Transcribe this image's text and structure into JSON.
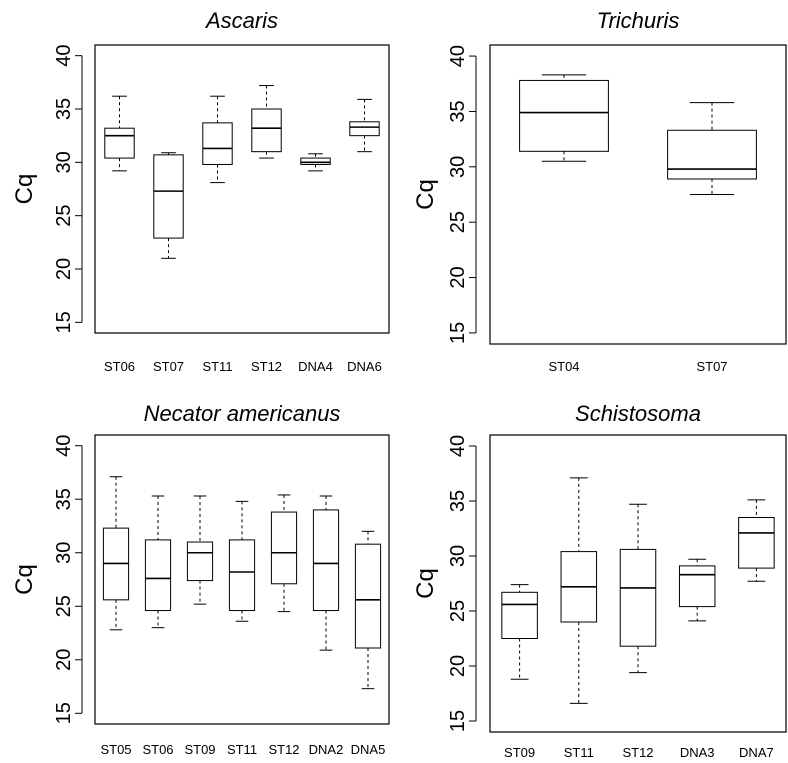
{
  "chart_data": [
    {
      "type": "box",
      "title": "Ascaris",
      "ylabel": "Cq",
      "xlabel": "",
      "ylim": [
        15,
        40
      ],
      "yticks": [
        15,
        20,
        25,
        30,
        35,
        40
      ],
      "grid": false,
      "categories": [
        "ST06",
        "ST07",
        "ST11",
        "ST12",
        "DNA4",
        "DNA6"
      ],
      "boxes": [
        {
          "min": 29.2,
          "q1": 30.4,
          "median": 32.5,
          "q3": 33.2,
          "max": 36.2
        },
        {
          "min": 21.0,
          "q1": 22.9,
          "median": 27.3,
          "q3": 30.7,
          "max": 30.9
        },
        {
          "min": 28.1,
          "q1": 29.8,
          "median": 31.3,
          "q3": 33.7,
          "max": 36.2
        },
        {
          "min": 30.4,
          "q1": 31.0,
          "median": 33.2,
          "q3": 35.0,
          "max": 37.2
        },
        {
          "min": 29.2,
          "q1": 29.8,
          "median": 30.0,
          "q3": 30.4,
          "max": 30.8
        },
        {
          "min": 31.0,
          "q1": 32.5,
          "median": 33.3,
          "q3": 33.8,
          "max": 35.9
        }
      ]
    },
    {
      "type": "box",
      "title": "Trichuris",
      "ylabel": "Cq",
      "xlabel": "",
      "ylim": [
        15,
        40
      ],
      "yticks": [
        15,
        20,
        25,
        30,
        35,
        40
      ],
      "grid": false,
      "categories": [
        "ST04",
        "ST07"
      ],
      "boxes": [
        {
          "min": 30.5,
          "q1": 31.4,
          "median": 34.9,
          "q3": 37.8,
          "max": 38.3
        },
        {
          "min": 27.5,
          "q1": 28.9,
          "median": 29.8,
          "q3": 33.3,
          "max": 35.8
        }
      ]
    },
    {
      "type": "box",
      "title": "Necator americanus",
      "ylabel": "Cq",
      "xlabel": "",
      "ylim": [
        15,
        40
      ],
      "yticks": [
        15,
        20,
        25,
        30,
        35,
        40
      ],
      "grid": false,
      "categories": [
        "ST05",
        "ST06",
        "ST09",
        "ST11",
        "ST12",
        "DNA2",
        "DNA5"
      ],
      "boxes": [
        {
          "min": 22.8,
          "q1": 25.6,
          "median": 29.0,
          "q3": 32.3,
          "max": 37.1
        },
        {
          "min": 23.0,
          "q1": 24.6,
          "median": 27.6,
          "q3": 31.2,
          "max": 35.3
        },
        {
          "min": 25.2,
          "q1": 27.4,
          "median": 30.0,
          "q3": 31.0,
          "max": 35.3
        },
        {
          "min": 23.6,
          "q1": 24.6,
          "median": 28.2,
          "q3": 31.2,
          "max": 34.8
        },
        {
          "min": 24.5,
          "q1": 27.1,
          "median": 30.0,
          "q3": 33.8,
          "max": 35.4
        },
        {
          "min": 20.9,
          "q1": 24.6,
          "median": 29.0,
          "q3": 34.0,
          "max": 35.3
        },
        {
          "min": 17.3,
          "q1": 21.1,
          "median": 25.6,
          "q3": 30.8,
          "max": 32.0
        }
      ]
    },
    {
      "type": "box",
      "title": "Schistosoma",
      "ylabel": "Cq",
      "xlabel": "",
      "ylim": [
        15,
        40
      ],
      "yticks": [
        15,
        20,
        25,
        30,
        35,
        40
      ],
      "grid": false,
      "categories": [
        "ST09",
        "ST11",
        "ST12",
        "DNA3",
        "DNA7"
      ],
      "boxes": [
        {
          "min": 18.8,
          "q1": 22.5,
          "median": 25.6,
          "q3": 26.7,
          "max": 27.4
        },
        {
          "min": 16.6,
          "q1": 24.0,
          "median": 27.2,
          "q3": 30.4,
          "max": 37.1
        },
        {
          "min": 19.4,
          "q1": 21.8,
          "median": 27.1,
          "q3": 30.6,
          "max": 34.7
        },
        {
          "min": 24.1,
          "q1": 25.4,
          "median": 28.3,
          "q3": 29.1,
          "max": 29.7
        },
        {
          "min": 27.7,
          "q1": 28.9,
          "median": 32.1,
          "q3": 33.5,
          "max": 35.1
        }
      ]
    }
  ]
}
